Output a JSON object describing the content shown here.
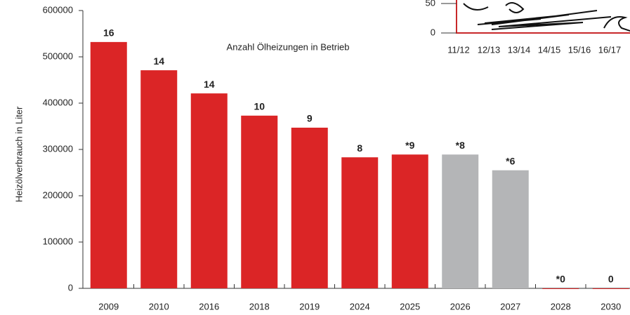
{
  "chart_data": [
    {
      "type": "bar",
      "annotation": "Anzahl Ölheizungen in Betrieb",
      "y_label": "Heizölverbrauch in Liter",
      "categories": [
        "2009",
        "2010",
        "2016",
        "2018",
        "2019",
        "2024",
        "2025",
        "2026",
        "2027",
        "2028",
        "2030"
      ],
      "values": [
        532000,
        471000,
        421000,
        373000,
        347000,
        283000,
        289000,
        289000,
        255000,
        0,
        0
      ],
      "bar_labels": [
        "16",
        "14",
        "14",
        "10",
        "9",
        "8",
        "*9",
        "*8",
        "*6",
        "*0",
        "0"
      ],
      "colors": [
        "#db2526",
        "#db2526",
        "#db2526",
        "#db2526",
        "#db2526",
        "#db2526",
        "#db2526",
        "#b4b5b7",
        "#b4b5b7",
        "#db2526",
        "#db2526"
      ],
      "ylim": [
        0,
        600000
      ],
      "yticks": [
        0,
        100000,
        200000,
        300000,
        400000,
        500000,
        600000
      ]
    },
    {
      "type": "inset",
      "categories": [
        "11/12",
        "12/13",
        "13/14",
        "14/15",
        "15/16",
        "16/17"
      ],
      "ylim": [
        0,
        50
      ],
      "yticks": [
        0,
        50
      ]
    }
  ]
}
